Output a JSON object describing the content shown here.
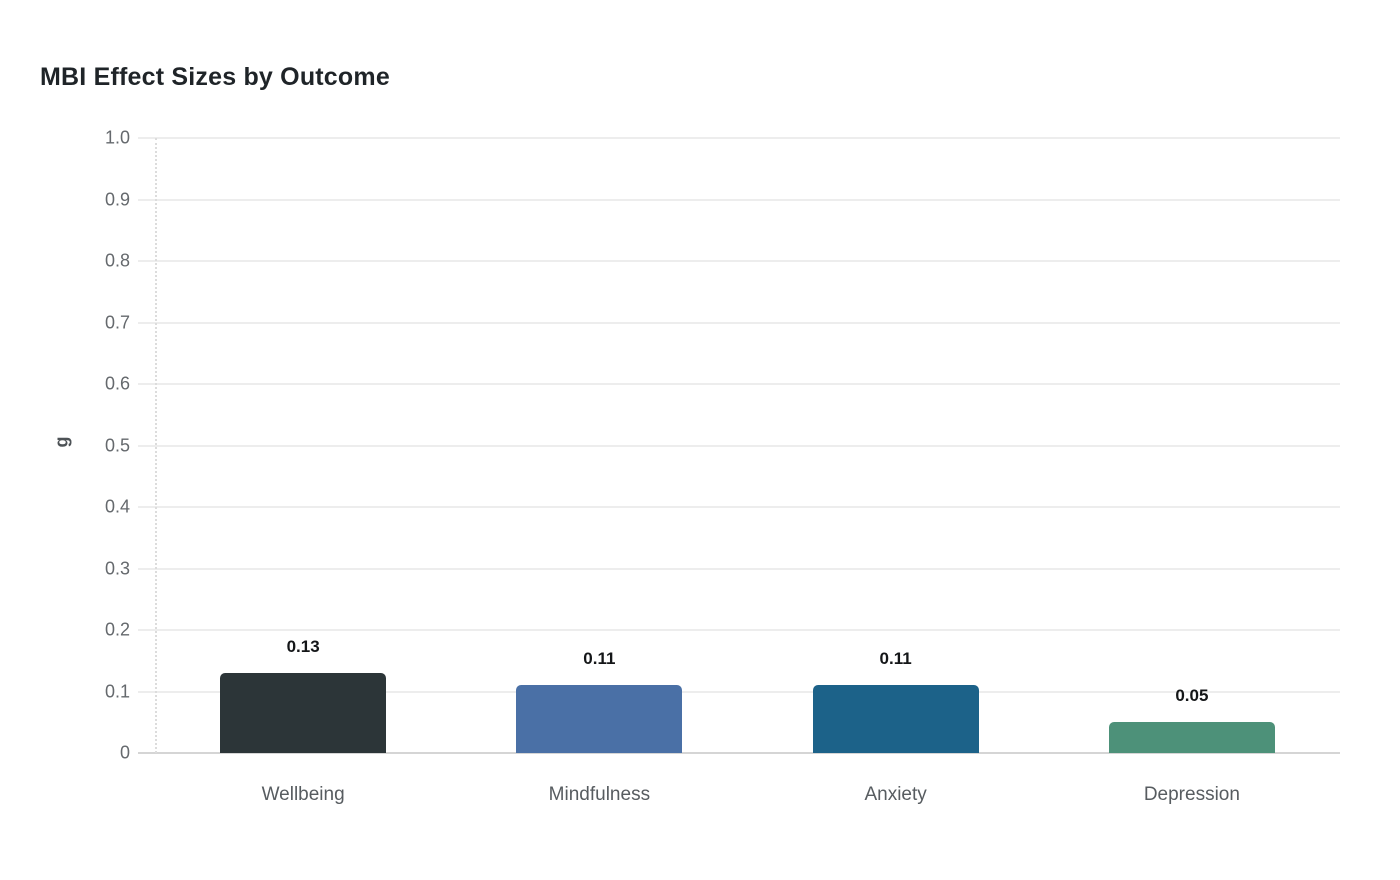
{
  "title": "MBI Effect Sizes by Outcome",
  "colors": {
    "background": "#ffffff",
    "title_text": "#1f2428",
    "gridline": "#ededed",
    "baseline": "#d5d5d5",
    "axis_dotted": "#dcdcdc",
    "y_tick_text": "#65696d",
    "x_tick_text": "#575c60",
    "value_label_text": "#141618",
    "y_axis_title_text": "#4d5256"
  },
  "chart_data": {
    "type": "bar",
    "title": "MBI Effect Sizes by Outcome",
    "categories": [
      "Wellbeing",
      "Mindfulness",
      "Anxiety",
      "Depression"
    ],
    "values": [
      0.13,
      0.11,
      0.11,
      0.05
    ],
    "value_labels": [
      "0.13",
      "0.11",
      "0.11",
      "0.05"
    ],
    "bar_colors": [
      "#2c3538",
      "#4a70a6",
      "#1c6289",
      "#4d9179"
    ],
    "xlabel": "",
    "ylabel": "g",
    "ylim": [
      0,
      1.0
    ],
    "ytick_step": 0.1,
    "ytick_labels": [
      "0",
      "0.1",
      "0.2",
      "0.3",
      "0.4",
      "0.5",
      "0.6",
      "0.7",
      "0.8",
      "0.9",
      "1.0"
    ],
    "grid": true,
    "legend": false
  }
}
